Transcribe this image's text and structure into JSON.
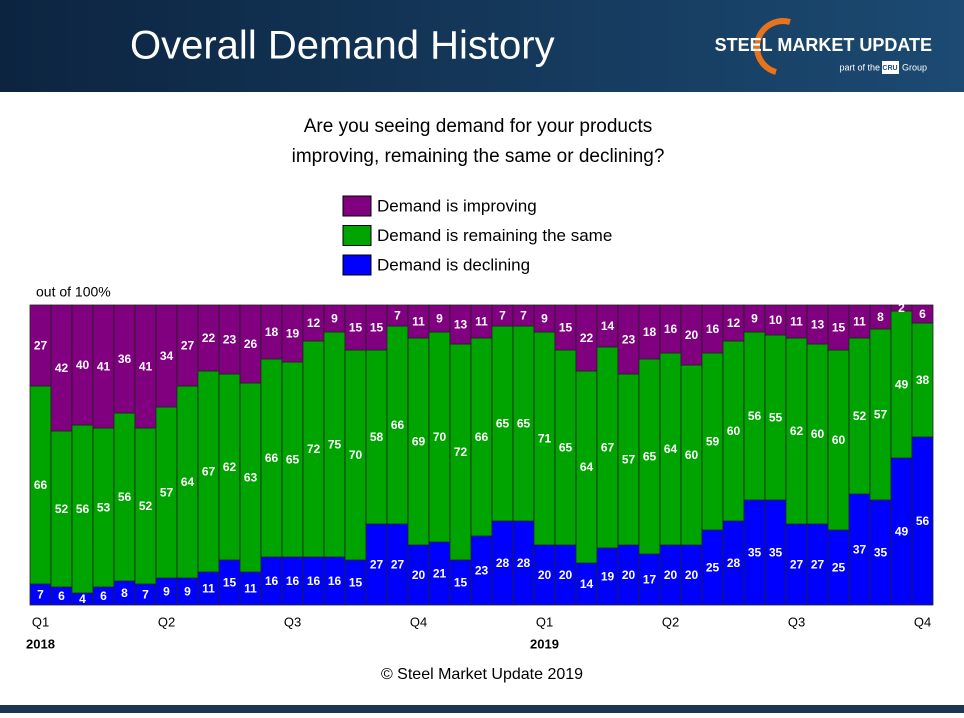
{
  "header": {
    "brand": "STEEL MARKET UPDATE",
    "brand_sub": "part of the",
    "brand_group_badge": "CRU",
    "brand_group": "Group"
  },
  "chart_data": {
    "type": "stacked_bar",
    "title": "Overall Demand History",
    "subtitle": [
      "Are you seeing demand for your products",
      "improving, remaining the same or declining?"
    ],
    "annotation": "out of 100%",
    "source": "© Steel Market Update 2019",
    "categories": [
      "Q1",
      null,
      null,
      null,
      null,
      null,
      "Q2",
      null,
      null,
      null,
      null,
      null,
      "Q3",
      null,
      null,
      null,
      null,
      null,
      "Q4",
      null,
      null,
      null,
      null,
      null,
      "Q1",
      null,
      null,
      null,
      null,
      null,
      "Q2",
      null,
      null,
      null,
      null,
      null,
      "Q3",
      null,
      null,
      null,
      null,
      null,
      "Q4"
    ],
    "years": [
      "2018",
      null,
      null,
      null,
      null,
      null,
      null,
      null,
      null,
      null,
      null,
      null,
      null,
      null,
      null,
      null,
      null,
      null,
      null,
      null,
      null,
      null,
      null,
      null,
      "2019",
      null,
      null,
      null,
      null,
      null,
      null,
      null,
      null,
      null,
      null,
      null,
      null,
      null,
      null,
      null,
      null,
      null,
      null
    ],
    "ylim": [
      0,
      100
    ],
    "series": [
      {
        "name": "Demand is improving",
        "color": "#800080",
        "values": [
          27,
          42,
          40,
          41,
          36,
          41,
          34,
          27,
          22,
          23,
          26,
          18,
          19,
          12,
          9,
          15,
          15,
          7,
          11,
          9,
          13,
          11,
          7,
          7,
          9,
          15,
          22,
          14,
          23,
          18,
          16,
          20,
          16,
          12,
          9,
          10,
          11,
          13,
          15,
          11,
          8,
          2,
          6
        ]
      },
      {
        "name": "Demand is remaining the same",
        "color": "#00a400",
        "values": [
          66,
          52,
          56,
          53,
          56,
          52,
          57,
          64,
          67,
          62,
          63,
          66,
          65,
          72,
          75,
          70,
          58,
          66,
          69,
          70,
          72,
          66,
          65,
          65,
          71,
          65,
          64,
          67,
          57,
          65,
          64,
          60,
          59,
          60,
          56,
          55,
          62,
          60,
          60,
          52,
          57,
          49,
          38
        ]
      },
      {
        "name": "Demand is declining",
        "color": "#0000ff",
        "values": [
          7,
          6,
          4,
          6,
          8,
          7,
          9,
          9,
          11,
          15,
          11,
          16,
          16,
          16,
          16,
          15,
          27,
          27,
          20,
          21,
          15,
          23,
          28,
          28,
          20,
          20,
          14,
          19,
          20,
          17,
          20,
          20,
          25,
          28,
          35,
          35,
          27,
          27,
          25,
          37,
          35,
          49,
          56
        ]
      }
    ]
  }
}
